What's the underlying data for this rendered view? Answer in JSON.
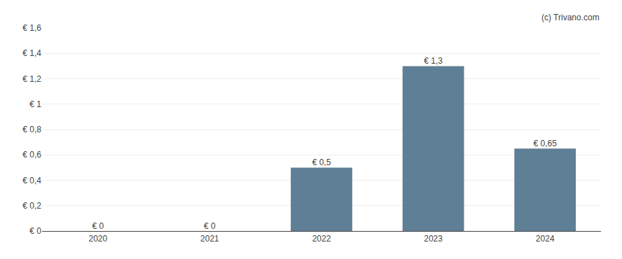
{
  "chart_data": {
    "type": "bar",
    "categories": [
      "2020",
      "2021",
      "2022",
      "2023",
      "2024"
    ],
    "values": [
      0,
      0,
      0.5,
      1.3,
      0.65
    ],
    "value_labels": [
      "€ 0",
      "€ 0",
      "€ 0,5",
      "€ 1,3",
      "€ 0,65"
    ],
    "data_labels": true,
    "color": "#5f7f96",
    "ylim": [
      0,
      1.6
    ],
    "yticks": [
      {
        "value": 0,
        "label": "€ 0"
      },
      {
        "value": 0.2,
        "label": "€ 0,2"
      },
      {
        "value": 0.4,
        "label": "€ 0,4"
      },
      {
        "value": 0.6,
        "label": "€ 0,6"
      },
      {
        "value": 0.8,
        "label": "€ 0,8"
      },
      {
        "value": 1.0,
        "label": "€ 1"
      },
      {
        "value": 1.2,
        "label": "€ 1,2"
      },
      {
        "value": 1.4,
        "label": "€ 1,4"
      },
      {
        "value": 1.6,
        "label": "€ 1,6"
      }
    ],
    "grid": true,
    "annotations": [
      "(c) Trivano.com"
    ]
  }
}
